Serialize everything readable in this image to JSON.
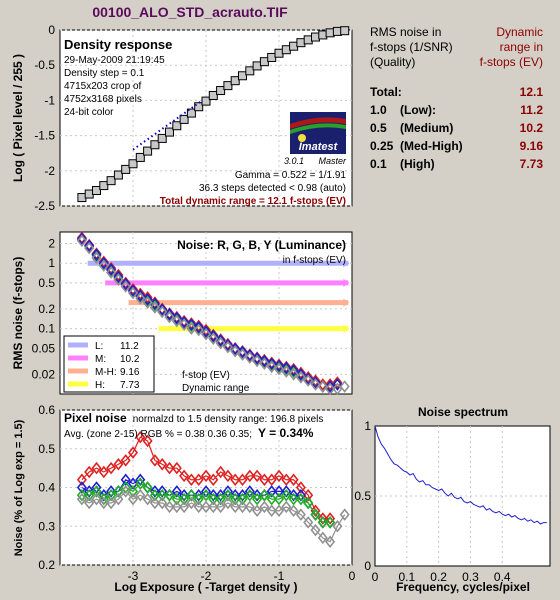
{
  "figure_title": "00100_ALO_STD_acrauto.TIF",
  "colors": {
    "background": "#d4d0c8",
    "title": "#5a0a5a",
    "dark_red": "#8b0000",
    "red": "#e02020",
    "green": "#20b020",
    "blue": "#2020d0",
    "gray": "#909090",
    "band_low": "#b0b0ff",
    "band_medium": "#ff80ff",
    "band_medhigh": "#ffb090",
    "band_high": "#ffff40"
  },
  "table": {
    "col1_header_lines": [
      "RMS noise in",
      "f-stops (1/SNR)",
      "(Quality)"
    ],
    "col2_header_lines": [
      "Dynamic",
      "range in",
      "f-stops (EV)"
    ],
    "rows": [
      {
        "label": "Total:",
        "quality": "",
        "value": "12.1"
      },
      {
        "label": "1.0",
        "quality": "(Low):",
        "value": "11.2"
      },
      {
        "label": "0.5",
        "quality": "(Medium)",
        "value": "10.2"
      },
      {
        "label": "0.25",
        "quality": "(Med-High)",
        "value": "9.16"
      },
      {
        "label": "0.1",
        "quality": "(High)",
        "value": "7.73"
      }
    ]
  },
  "density_panel": {
    "heading": "Density response",
    "info_lines": [
      "29-May-2009 21:19:45",
      "Density step = 0.1",
      "4715x203 crop of",
      "4752x3168 pixels",
      "24-bit color"
    ],
    "logo_text": "Imatest",
    "version": "3.0.1",
    "version_suffix": "Master",
    "gamma_text": "Gamma = 0.522 = 1/1.91",
    "steps_text": "36.3 steps detected < 0.98 (auto)",
    "total_dr_text": "Total dynamic range = 12.1 f-stops (EV)"
  },
  "rms_panel": {
    "heading": "Noise: R, G, B, Y (Luminance)",
    "subheading": "in f-stops (EV)",
    "legend": [
      {
        "key": "L:",
        "value": "11.2",
        "color": "#b0b0ff"
      },
      {
        "key": "M:",
        "value": "10.2",
        "color": "#ff80ff"
      },
      {
        "key": "M-H:",
        "value": "9.16",
        "color": "#ffb090"
      },
      {
        "key": "H:",
        "value": "7.73",
        "color": "#ffff40"
      }
    ],
    "note_lines": [
      "f-stop (EV)",
      "Dynamic range"
    ]
  },
  "pixel_panel": {
    "heading": "Pixel noise",
    "line1_rest": "normalzd to 1.5 density range: 196.8 pixels",
    "line2": "Avg. (zone 2-15) RGB % = 0.38  0.36  0.35;",
    "y_text": "Y = 0.34%"
  },
  "chart_data": [
    {
      "type": "line",
      "title": "Density response",
      "ylabel": "Log ( Pixel level / 255 )",
      "xlim": [
        -4,
        0
      ],
      "ylim": [
        -2.5,
        0
      ],
      "yticks": [
        "0",
        "-0.5",
        "-1",
        "-1.5",
        "-2",
        "-2.5"
      ],
      "series": [
        {
          "marker": "square",
          "x": [
            -3.7,
            -3.6,
            -3.5,
            -3.4,
            -3.3,
            -3.2,
            -3.1,
            -3.0,
            -2.9,
            -2.8,
            -2.7,
            -2.6,
            -2.5,
            -2.4,
            -2.3,
            -2.2,
            -2.1,
            -2.0,
            -1.9,
            -1.8,
            -1.7,
            -1.6,
            -1.5,
            -1.4,
            -1.3,
            -1.2,
            -1.1,
            -1.0,
            -0.9,
            -0.8,
            -0.7,
            -0.6,
            -0.5,
            -0.4,
            -0.3,
            -0.2,
            -0.1
          ],
          "y": [
            -2.38,
            -2.33,
            -2.28,
            -2.21,
            -2.14,
            -2.06,
            -1.98,
            -1.9,
            -1.81,
            -1.72,
            -1.63,
            -1.54,
            -1.45,
            -1.36,
            -1.27,
            -1.18,
            -1.09,
            -1.01,
            -0.93,
            -0.86,
            -0.79,
            -0.72,
            -0.65,
            -0.58,
            -0.51,
            -0.45,
            -0.39,
            -0.33,
            -0.28,
            -0.23,
            -0.18,
            -0.14,
            -0.1,
            -0.07,
            -0.04,
            -0.02,
            -0.01
          ]
        },
        {
          "style": "dotted",
          "x": [
            -3.0,
            -2.05
          ],
          "y": [
            -1.7,
            -1.0
          ]
        }
      ]
    },
    {
      "type": "line",
      "title": "Noise: R, G, B, Y (Luminance)",
      "ylabel": "RMS noise (f-stops)",
      "scale": "log",
      "xlim": [
        -4,
        0
      ],
      "ylim": [
        0.01,
        3
      ],
      "yticks": [
        "2",
        "1",
        "0.5",
        "0.2",
        "0.1",
        "0.05",
        "0.02"
      ],
      "bands": [
        {
          "name": "L",
          "y": 1.0,
          "x": [
            -3.62,
            -0.05
          ]
        },
        {
          "name": "M",
          "y": 0.5,
          "x": [
            -3.38,
            -0.05
          ]
        },
        {
          "name": "M-H",
          "y": 0.25,
          "x": [
            -3.06,
            -0.05
          ]
        },
        {
          "name": "H",
          "y": 0.1,
          "x": [
            -2.65,
            -0.05
          ]
        }
      ],
      "series": [
        {
          "color": "red",
          "x": [
            -3.7,
            -3.6,
            -3.5,
            -3.4,
            -3.3,
            -3.2,
            -3.1,
            -3.0,
            -2.9,
            -2.8,
            -2.7,
            -2.6,
            -2.5,
            -2.4,
            -2.3,
            -2.2,
            -2.1,
            -2.0,
            -1.9,
            -1.8,
            -1.7,
            -1.6,
            -1.5,
            -1.4,
            -1.3,
            -1.2,
            -1.1,
            -1.0,
            -0.9,
            -0.8,
            -0.7,
            -0.6,
            -0.5,
            -0.4,
            -0.3,
            -0.2
          ],
          "y": [
            2.45,
            1.9,
            1.4,
            1.05,
            0.84,
            0.66,
            0.5,
            0.4,
            0.34,
            0.3,
            0.25,
            0.2,
            0.17,
            0.15,
            0.13,
            0.12,
            0.11,
            0.095,
            0.08,
            0.068,
            0.058,
            0.05,
            0.045,
            0.04,
            0.036,
            0.033,
            0.03,
            0.028,
            0.026,
            0.024,
            0.021,
            0.018,
            0.016,
            0.014,
            0.014,
            0.015
          ]
        },
        {
          "color": "green",
          "x": [
            -3.7,
            -3.6,
            -3.5,
            -3.4,
            -3.3,
            -3.2,
            -3.1,
            -3.0,
            -2.9,
            -2.8,
            -2.7,
            -2.6,
            -2.5,
            -2.4,
            -2.3,
            -2.2,
            -2.1,
            -2.0,
            -1.9,
            -1.8,
            -1.7,
            -1.6,
            -1.5,
            -1.4,
            -1.3,
            -1.2,
            -1.1,
            -1.0,
            -0.9,
            -0.8,
            -0.7,
            -0.6,
            -0.5,
            -0.4,
            -0.3,
            -0.2
          ],
          "y": [
            2.3,
            1.8,
            1.3,
            0.98,
            0.78,
            0.6,
            0.47,
            0.37,
            0.31,
            0.27,
            0.23,
            0.19,
            0.16,
            0.14,
            0.12,
            0.11,
            0.1,
            0.088,
            0.075,
            0.064,
            0.055,
            0.048,
            0.043,
            0.038,
            0.034,
            0.031,
            0.028,
            0.026,
            0.024,
            0.022,
            0.019,
            0.017,
            0.015,
            0.013,
            0.013,
            0.014
          ]
        },
        {
          "color": "blue",
          "x": [
            -3.7,
            -3.6,
            -3.5,
            -3.4,
            -3.3,
            -3.2,
            -3.1,
            -3.0,
            -2.9,
            -2.8,
            -2.7,
            -2.6,
            -2.5,
            -2.4,
            -2.3,
            -2.2,
            -2.1,
            -2.0,
            -1.9,
            -1.8,
            -1.7,
            -1.6,
            -1.5,
            -1.4,
            -1.3,
            -1.2,
            -1.1,
            -1.0,
            -0.9,
            -0.8,
            -0.7,
            -0.6,
            -0.5,
            -0.4,
            -0.3,
            -0.2
          ],
          "y": [
            2.35,
            1.85,
            1.35,
            1.0,
            0.8,
            0.62,
            0.48,
            0.38,
            0.32,
            0.28,
            0.24,
            0.195,
            0.165,
            0.145,
            0.125,
            0.115,
            0.105,
            0.09,
            0.077,
            0.066,
            0.056,
            0.049,
            0.044,
            0.039,
            0.035,
            0.032,
            0.029,
            0.027,
            0.025,
            0.023,
            0.02,
            0.017,
            0.015,
            0.013,
            0.013,
            0.014
          ]
        },
        {
          "color": "gray",
          "x": [
            -3.7,
            -3.6,
            -3.5,
            -3.4,
            -3.3,
            -3.2,
            -3.1,
            -3.0,
            -2.9,
            -2.8,
            -2.7,
            -2.6,
            -2.5,
            -2.4,
            -2.3,
            -2.2,
            -2.1,
            -2.0,
            -1.9,
            -1.8,
            -1.7,
            -1.6,
            -1.5,
            -1.4,
            -1.3,
            -1.2,
            -1.1,
            -1.0,
            -0.9,
            -0.8,
            -0.7,
            -0.6,
            -0.5,
            -0.4,
            -0.3,
            -0.2,
            -0.1
          ],
          "y": [
            2.2,
            1.7,
            1.2,
            0.92,
            0.72,
            0.56,
            0.44,
            0.35,
            0.29,
            0.25,
            0.21,
            0.18,
            0.15,
            0.13,
            0.115,
            0.1,
            0.095,
            0.082,
            0.07,
            0.06,
            0.052,
            0.045,
            0.04,
            0.036,
            0.032,
            0.029,
            0.026,
            0.024,
            0.022,
            0.02,
            0.018,
            0.016,
            0.014,
            0.013,
            0.012,
            0.012,
            0.013
          ]
        }
      ]
    },
    {
      "type": "line",
      "title": "Pixel noise",
      "xlabel": "Log Exposure ( -Target density )",
      "ylabel": "Noise (% of Log exp = 1.5)",
      "xlim": [
        -4,
        0
      ],
      "ylim": [
        0.2,
        0.6
      ],
      "xticks": [
        "-3",
        "-2",
        "-1",
        "0"
      ],
      "yticks": [
        "0.6",
        "0.5",
        "0.4",
        "0.3",
        "0.2"
      ],
      "series": [
        {
          "color": "red",
          "x": [
            -3.7,
            -3.6,
            -3.5,
            -3.4,
            -3.3,
            -3.2,
            -3.1,
            -3.0,
            -2.9,
            -2.8,
            -2.7,
            -2.6,
            -2.5,
            -2.4,
            -2.3,
            -2.2,
            -2.1,
            -2.0,
            -1.9,
            -1.8,
            -1.7,
            -1.6,
            -1.5,
            -1.4,
            -1.3,
            -1.2,
            -1.1,
            -1.0,
            -0.9,
            -0.8,
            -0.7,
            -0.6,
            -0.5,
            -0.4,
            -0.3
          ],
          "y": [
            0.42,
            0.44,
            0.45,
            0.44,
            0.45,
            0.46,
            0.47,
            0.49,
            0.53,
            0.52,
            0.47,
            0.46,
            0.45,
            0.45,
            0.43,
            0.42,
            0.42,
            0.43,
            0.42,
            0.44,
            0.43,
            0.42,
            0.42,
            0.43,
            0.43,
            0.42,
            0.42,
            0.43,
            0.42,
            0.42,
            0.4,
            0.38,
            0.34,
            0.32,
            0.32
          ]
        },
        {
          "color": "blue",
          "x": [
            -3.7,
            -3.6,
            -3.5,
            -3.4,
            -3.3,
            -3.2,
            -3.1,
            -3.0,
            -2.9,
            -2.8,
            -2.7,
            -2.6,
            -2.5,
            -2.4,
            -2.3,
            -2.2,
            -2.1,
            -2.0,
            -1.9,
            -1.8,
            -1.7,
            -1.6,
            -1.5,
            -1.4,
            -1.3,
            -1.2,
            -1.1,
            -1.0,
            -0.9,
            -0.8,
            -0.7,
            -0.6,
            -0.5,
            -0.4,
            -0.3
          ],
          "y": [
            0.4,
            0.39,
            0.4,
            0.38,
            0.39,
            0.39,
            0.42,
            0.41,
            0.42,
            0.4,
            0.39,
            0.39,
            0.38,
            0.39,
            0.38,
            0.38,
            0.38,
            0.39,
            0.38,
            0.38,
            0.39,
            0.38,
            0.38,
            0.39,
            0.38,
            0.38,
            0.39,
            0.39,
            0.39,
            0.38,
            0.38,
            0.36,
            0.33,
            0.31,
            0.31
          ]
        },
        {
          "color": "green",
          "x": [
            -3.7,
            -3.6,
            -3.5,
            -3.4,
            -3.3,
            -3.2,
            -3.1,
            -3.0,
            -2.9,
            -2.8,
            -2.7,
            -2.6,
            -2.5,
            -2.4,
            -2.3,
            -2.2,
            -2.1,
            -2.0,
            -1.9,
            -1.8,
            -1.7,
            -1.6,
            -1.5,
            -1.4,
            -1.3,
            -1.2,
            -1.1,
            -1.0,
            -0.9,
            -0.8,
            -0.7,
            -0.6,
            -0.5,
            -0.4,
            -0.3
          ],
          "y": [
            0.38,
            0.38,
            0.39,
            0.37,
            0.38,
            0.39,
            0.4,
            0.39,
            0.41,
            0.4,
            0.38,
            0.38,
            0.38,
            0.37,
            0.37,
            0.38,
            0.37,
            0.38,
            0.37,
            0.37,
            0.38,
            0.37,
            0.37,
            0.38,
            0.37,
            0.38,
            0.37,
            0.37,
            0.38,
            0.37,
            0.37,
            0.36,
            0.33,
            0.31,
            0.31
          ]
        },
        {
          "color": "gray",
          "x": [
            -3.7,
            -3.6,
            -3.5,
            -3.4,
            -3.3,
            -3.2,
            -3.1,
            -3.0,
            -2.9,
            -2.8,
            -2.7,
            -2.6,
            -2.5,
            -2.4,
            -2.3,
            -2.2,
            -2.1,
            -2.0,
            -1.9,
            -1.8,
            -1.7,
            -1.6,
            -1.5,
            -1.4,
            -1.3,
            -1.2,
            -1.1,
            -1.0,
            -0.9,
            -0.8,
            -0.7,
            -0.6,
            -0.5,
            -0.4,
            -0.3,
            -0.2,
            -0.1
          ],
          "y": [
            0.37,
            0.36,
            0.37,
            0.36,
            0.36,
            0.37,
            0.39,
            0.37,
            0.38,
            0.37,
            0.36,
            0.36,
            0.35,
            0.35,
            0.35,
            0.36,
            0.35,
            0.35,
            0.35,
            0.35,
            0.36,
            0.35,
            0.35,
            0.35,
            0.34,
            0.35,
            0.34,
            0.34,
            0.35,
            0.34,
            0.33,
            0.31,
            0.29,
            0.27,
            0.26,
            0.3,
            0.33
          ]
        }
      ]
    },
    {
      "type": "line",
      "title": "Noise spectrum",
      "xlabel": "Frequency, cycles/pixel",
      "xlim": [
        0,
        0.55
      ],
      "ylim": [
        0,
        1
      ],
      "xticks": [
        "0",
        "0.1",
        "0.2",
        "0.3",
        "0.4"
      ],
      "yticks": [
        "1",
        "0.5",
        "0"
      ],
      "series": [
        {
          "color": "blue",
          "x": [
            0,
            0.01,
            0.02,
            0.03,
            0.04,
            0.05,
            0.06,
            0.07,
            0.08,
            0.09,
            0.1,
            0.11,
            0.12,
            0.13,
            0.14,
            0.15,
            0.16,
            0.17,
            0.18,
            0.19,
            0.2,
            0.21,
            0.22,
            0.23,
            0.24,
            0.25,
            0.26,
            0.27,
            0.28,
            0.29,
            0.3,
            0.31,
            0.32,
            0.33,
            0.34,
            0.35,
            0.36,
            0.37,
            0.38,
            0.39,
            0.4,
            0.41,
            0.42,
            0.43,
            0.44,
            0.45,
            0.46,
            0.47,
            0.48,
            0.49,
            0.5,
            0.51,
            0.52,
            0.53,
            0.54
          ],
          "y": [
            1.0,
            0.92,
            0.87,
            0.84,
            0.8,
            0.76,
            0.73,
            0.72,
            0.7,
            0.68,
            0.67,
            0.65,
            0.66,
            0.62,
            0.6,
            0.61,
            0.58,
            0.58,
            0.56,
            0.55,
            0.54,
            0.55,
            0.52,
            0.5,
            0.52,
            0.49,
            0.48,
            0.49,
            0.46,
            0.45,
            0.46,
            0.44,
            0.43,
            0.42,
            0.43,
            0.4,
            0.41,
            0.39,
            0.38,
            0.39,
            0.37,
            0.36,
            0.37,
            0.35,
            0.36,
            0.34,
            0.33,
            0.34,
            0.32,
            0.33,
            0.31,
            0.32,
            0.3,
            0.31,
            0.31
          ]
        }
      ]
    }
  ]
}
